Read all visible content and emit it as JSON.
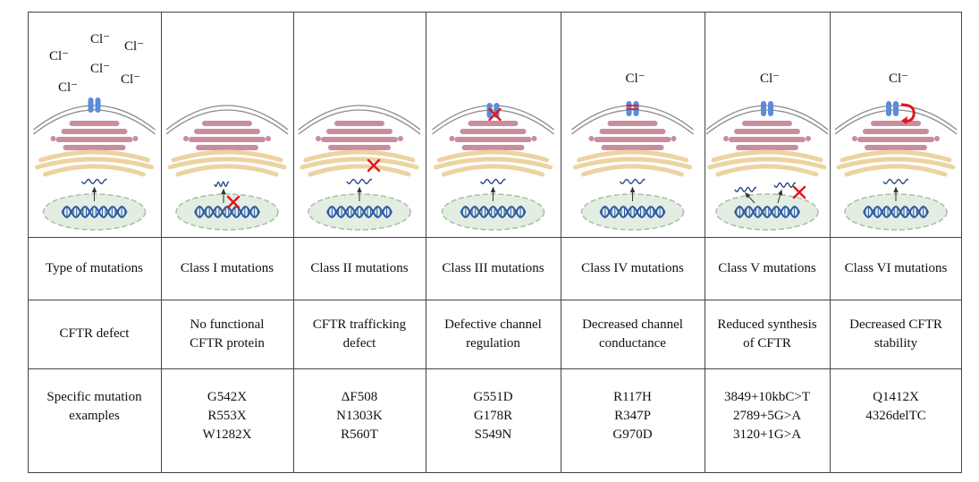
{
  "ion_label": "Cl⁻",
  "rows": {
    "type": [
      "Type of mutations",
      "Class I mutations",
      "Class II mutations",
      "Class III mutations",
      "Class IV mutations",
      "Class V mutations",
      "Class VI mutations"
    ],
    "defect": [
      [
        "CFTR defect"
      ],
      [
        "No functional",
        "CFTR protein"
      ],
      [
        "CFTR trafficking",
        "defect"
      ],
      [
        "Defective channel",
        "regulation"
      ],
      [
        "Decreased channel",
        "conductance"
      ],
      [
        "Reduced synthesis",
        "of CFTR"
      ],
      [
        "Decreased CFTR",
        "stability"
      ]
    ],
    "examples": [
      [
        "Specific mutation",
        "examples"
      ],
      [
        "G542X",
        "R553X",
        "W1282X"
      ],
      [
        "ΔF508",
        "N1303K",
        "R560T"
      ],
      [
        "G551D",
        "G178R",
        "S549N"
      ],
      [
        "R117H",
        "R347P",
        "G970D"
      ],
      [
        "3849+10kbC>T",
        "2789+5G>A",
        "3120+1G>A"
      ],
      [
        "Q1412X",
        "4326delTC"
      ]
    ]
  },
  "colors": {
    "membrane": "#8a8a8a",
    "channel": "#5b8bd9",
    "golgi": "#c98d9d",
    "er": "#ecd3a1",
    "nucleus_fill": "#e3ede2",
    "nucleus_stroke": "#a7bfa3",
    "dna": "#2d5aa5",
    "mrna": "#1f3f80",
    "block": "#e3141a"
  }
}
